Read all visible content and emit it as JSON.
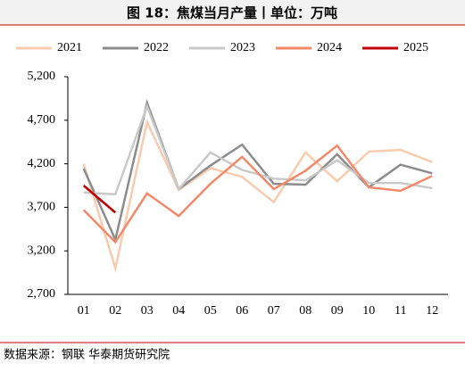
{
  "chart_data": {
    "type": "line",
    "title": "图 18：焦煤当月产量丨单位：万吨",
    "source": "数据来源：钢联 华泰期货研究院",
    "categories": [
      "01",
      "02",
      "03",
      "04",
      "05",
      "06",
      "07",
      "08",
      "09",
      "10",
      "11",
      "12"
    ],
    "ylim": [
      2700,
      5200
    ],
    "yticks": [
      {
        "value": 2700,
        "label": "2,700"
      },
      {
        "value": 3200,
        "label": "3,200"
      },
      {
        "value": 3700,
        "label": "3,700"
      },
      {
        "value": 4200,
        "label": "4,200"
      },
      {
        "value": 4700,
        "label": "4,700"
      },
      {
        "value": 5200,
        "label": "5,200"
      }
    ],
    "legend": "top",
    "series": [
      {
        "name": "2021",
        "color": "#f8cbad",
        "values": [
          4200,
          3000,
          4680,
          3900,
          4150,
          4050,
          3760,
          4330,
          4000,
          4340,
          4360,
          4220
        ]
      },
      {
        "name": "2022",
        "color": "#8c8c8c",
        "values": [
          4145,
          3330,
          4900,
          3910,
          4180,
          4420,
          3970,
          3960,
          4310,
          3930,
          4190,
          4090
        ]
      },
      {
        "name": "2023",
        "color": "#c9c9c9",
        "values": [
          3870,
          3850,
          4860,
          3910,
          4330,
          4130,
          4030,
          4010,
          4240,
          3980,
          3980,
          3920
        ]
      },
      {
        "name": "2024",
        "color": "#f4896a",
        "values": [
          3670,
          3300,
          3860,
          3600,
          3970,
          4280,
          3910,
          4120,
          4410,
          3930,
          3890,
          4060
        ]
      },
      {
        "name": "2025",
        "color": "#c00000",
        "values": [
          3950,
          3640,
          null,
          null,
          null,
          null,
          null,
          null,
          null,
          null,
          null,
          null
        ]
      }
    ]
  }
}
